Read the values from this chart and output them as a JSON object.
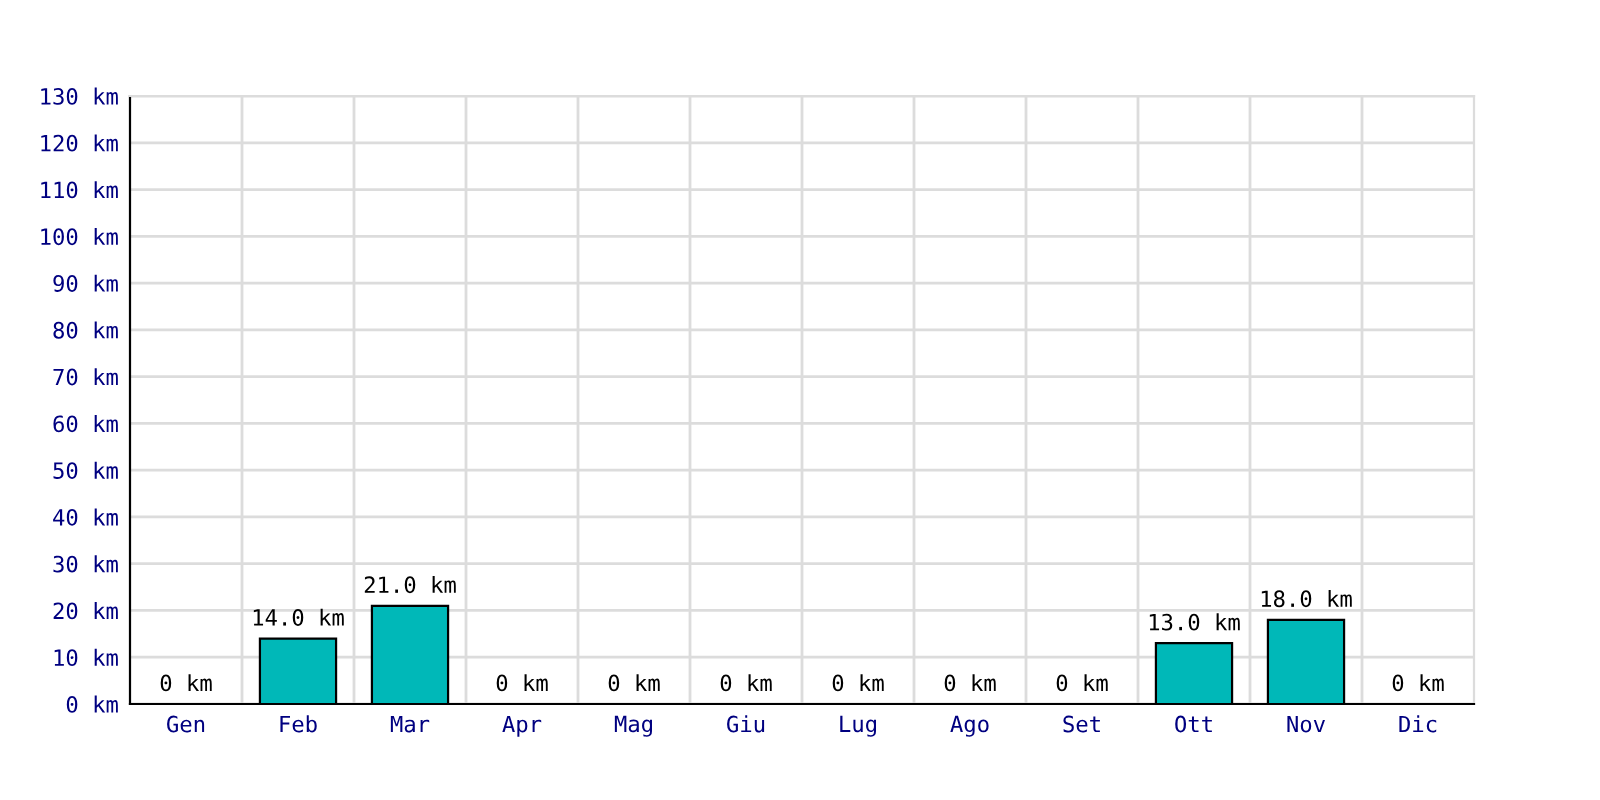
{
  "chart_data": {
    "type": "bar",
    "categories": [
      "Gen",
      "Feb",
      "Mar",
      "Apr",
      "Mag",
      "Giu",
      "Lug",
      "Ago",
      "Set",
      "Ott",
      "Nov",
      "Dic"
    ],
    "values": [
      0,
      14,
      21,
      0,
      0,
      0,
      0,
      0,
      0,
      13,
      18,
      0
    ],
    "value_labels": [
      "0 km",
      "14.0 km",
      "21.0 km",
      "0 km",
      "0 km",
      "0 km",
      "0 km",
      "0 km",
      "0 km",
      "13.0 km",
      "18.0 km",
      "0 km"
    ],
    "color": "#00b8b8",
    "ylim": [
      0,
      130
    ],
    "yticks": [
      {
        "value": 0,
        "label": "0 km"
      },
      {
        "value": 10,
        "label": "10 km"
      },
      {
        "value": 20,
        "label": "20 km"
      },
      {
        "value": 30,
        "label": "30 km"
      },
      {
        "value": 40,
        "label": "40 km"
      },
      {
        "value": 50,
        "label": "50 km"
      },
      {
        "value": 60,
        "label": "60 km"
      },
      {
        "value": 70,
        "label": "70 km"
      },
      {
        "value": 80,
        "label": "80 km"
      },
      {
        "value": 90,
        "label": "90 km"
      },
      {
        "value": 100,
        "label": "100 km"
      },
      {
        "value": 110,
        "label": "110 km"
      },
      {
        "value": 120,
        "label": "120 km"
      },
      {
        "value": 130,
        "label": "130 km"
      }
    ],
    "grid": true
  }
}
